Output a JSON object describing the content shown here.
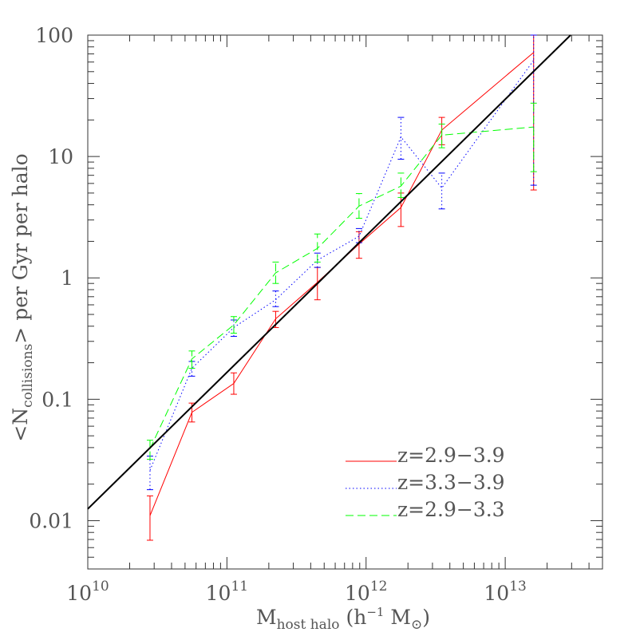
{
  "chart_data": {
    "type": "line",
    "title": "",
    "xscale": "log",
    "yscale": "log",
    "xlim": [
      10000000000.0,
      50000000000000.0
    ],
    "ylim": [
      0.004,
      100
    ],
    "x_tick_labels": [
      {
        "value": 10000000000.0,
        "base": "10",
        "exp": "10"
      },
      {
        "value": 100000000000.0,
        "base": "10",
        "exp": "11"
      },
      {
        "value": 1000000000000.0,
        "base": "10",
        "exp": "12"
      },
      {
        "value": 10000000000000.0,
        "base": "10",
        "exp": "13"
      }
    ],
    "y_tick_labels": [
      {
        "value": 0.01,
        "label": "0.01"
      },
      {
        "value": 0.1,
        "label": "0.1"
      },
      {
        "value": 1,
        "label": "1"
      },
      {
        "value": 10,
        "label": "10"
      },
      {
        "value": 100,
        "label": "100"
      }
    ],
    "xlabel": {
      "main": "M",
      "sub": "host halo",
      "rest": " (h",
      "sup": "−1",
      "tail": " M",
      "symbol": "⊙",
      "close": ")"
    },
    "ylabel": {
      "open": "<N",
      "sub": "collisions",
      "rest": "> per Gyr per halo"
    },
    "legend_position": "bottom-right",
    "series": [
      {
        "name": "z=2.9−3.9",
        "color": "#ff0000",
        "dash": "solid",
        "x": [
          28000000000.0,
          56000000000.0,
          112000000000.0,
          224000000000.0,
          447000000000.0,
          890000000000.0,
          1780000000000.0,
          3500000000000.0,
          16000000000000.0
        ],
        "y": [
          0.011,
          0.078,
          0.135,
          0.46,
          0.92,
          1.9,
          3.8,
          16.5,
          72
        ],
        "err_low": [
          0.0069,
          0.065,
          0.11,
          0.39,
          0.66,
          1.45,
          2.65,
          12.5,
          5.3
        ],
        "err_high": [
          0.016,
          0.093,
          0.165,
          0.53,
          1.22,
          2.4,
          5.0,
          21.0,
          100
        ]
      },
      {
        "name": "z=3.3−3.9",
        "color": "#0000ff",
        "dash": "dotted",
        "x": [
          28000000000.0,
          56000000000.0,
          112000000000.0,
          224000000000.0,
          447000000000.0,
          890000000000.0,
          1780000000000.0,
          3500000000000.0,
          16000000000000.0
        ],
        "y": [
          0.026,
          0.18,
          0.39,
          0.66,
          1.4,
          2.2,
          14.5,
          5.5,
          62
        ],
        "err_low": [
          0.018,
          0.155,
          0.33,
          0.58,
          1.22,
          1.95,
          9.5,
          3.7,
          5.8
        ],
        "err_high": [
          0.034,
          0.205,
          0.45,
          0.78,
          1.6,
          2.55,
          21.0,
          7.3,
          100
        ]
      },
      {
        "name": "z=2.9−3.3",
        "color": "#00ff00",
        "dash": "dashed",
        "x": [
          28000000000.0,
          56000000000.0,
          112000000000.0,
          224000000000.0,
          447000000000.0,
          890000000000.0,
          1780000000000.0,
          3500000000000.0,
          16000000000000.0
        ],
        "y": [
          0.039,
          0.215,
          0.41,
          1.1,
          1.75,
          3.9,
          5.7,
          15.0,
          17.5
        ],
        "err_low": [
          0.032,
          0.18,
          0.35,
          0.9,
          1.35,
          3.1,
          4.6,
          11.8,
          7.5
        ],
        "err_high": [
          0.046,
          0.25,
          0.48,
          1.35,
          2.3,
          4.95,
          7.3,
          18.5,
          27.5
        ]
      },
      {
        "name": "",
        "color": "#000000",
        "dash": "solid",
        "fit": true,
        "x": [
          10000000000.0,
          29500000000000.0
        ],
        "y": [
          0.0125,
          100
        ]
      }
    ]
  }
}
